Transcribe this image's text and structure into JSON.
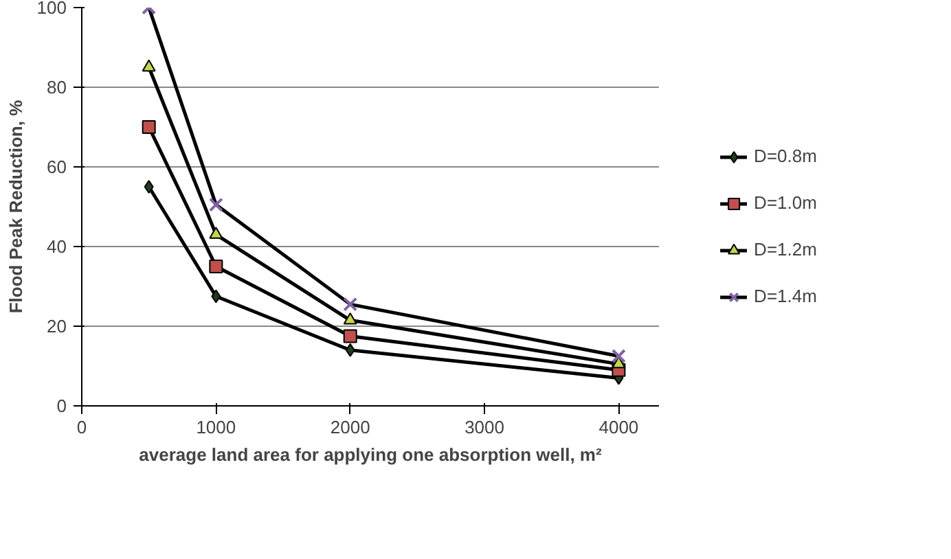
{
  "chart_data": {
    "type": "line",
    "xlabel": "average land area for applying one absorption well, m²",
    "ylabel": "Flood Peak Reduction, %",
    "x": [
      500,
      1000,
      2000,
      4000
    ],
    "series": [
      {
        "name": "D=0.8m",
        "color": "#1f3d1f",
        "marker": "diamond",
        "values": [
          55,
          27.5,
          14,
          7
        ]
      },
      {
        "name": "D=1.0m",
        "color": "#c0504d",
        "marker": "square",
        "values": [
          70,
          35,
          17.5,
          9
        ]
      },
      {
        "name": "D=1.2m",
        "color": "#c4d64f",
        "marker": "triangle",
        "values": [
          85,
          43,
          21.5,
          10.5
        ]
      },
      {
        "name": "D=1.4m",
        "color": "#8064a2",
        "marker": "cross",
        "values": [
          100,
          50.5,
          25.5,
          12.5
        ]
      }
    ],
    "xlim": [
      0,
      4300
    ],
    "xticks": [
      0,
      1000,
      2000,
      3000,
      4000
    ],
    "ylim": [
      0,
      100
    ],
    "yticks": [
      0,
      20,
      40,
      60,
      80,
      100
    ],
    "grid": "y",
    "legend": "right",
    "line_style": "solid"
  }
}
